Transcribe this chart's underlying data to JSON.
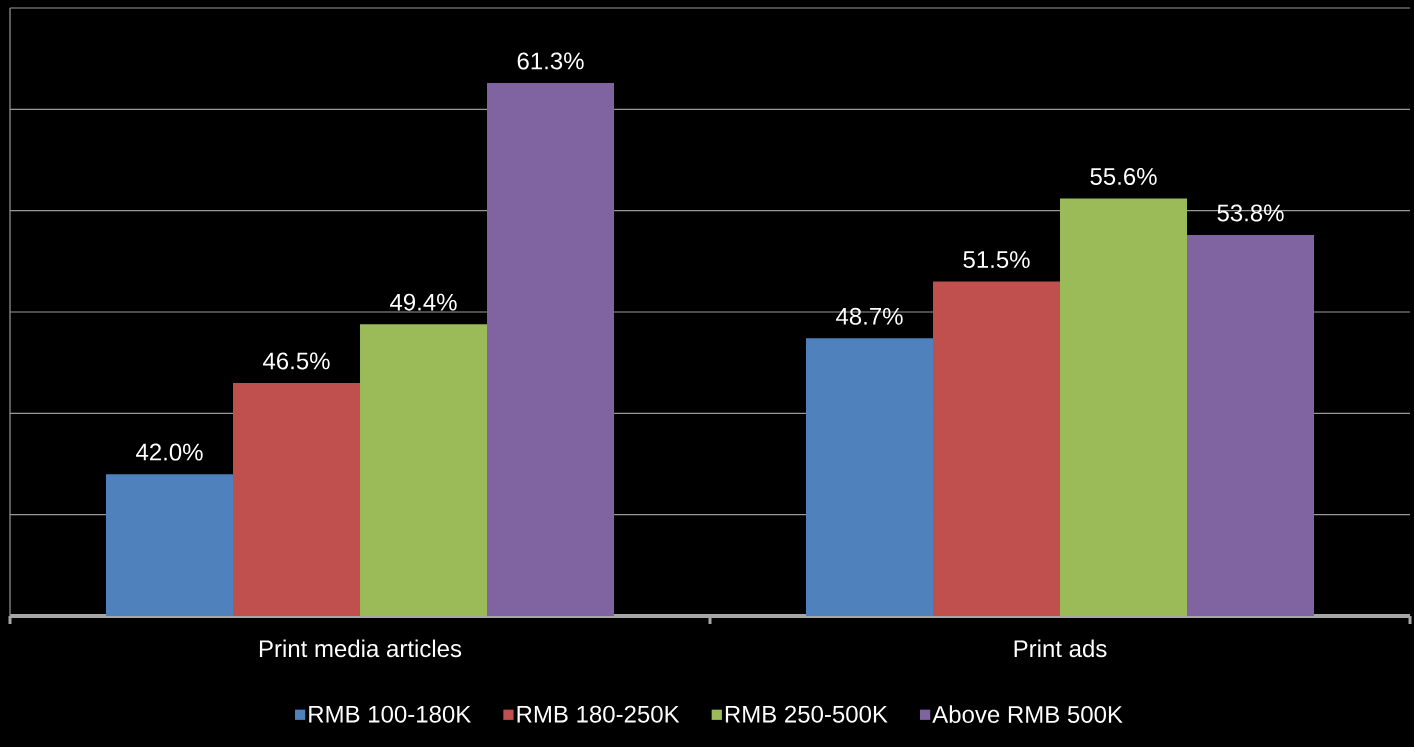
{
  "chart_data": {
    "type": "bar",
    "categories": [
      "Print media articles",
      "Print ads"
    ],
    "series": [
      {
        "name": "RMB 100-180K",
        "color": "#4f81bd",
        "values": [
          42.0,
          48.7
        ],
        "value_labels": [
          "42.0%",
          "48.7%"
        ]
      },
      {
        "name": "RMB 180-250K",
        "color": "#c0504d",
        "values": [
          46.5,
          51.5
        ],
        "value_labels": [
          "46.5%",
          "51.5%"
        ]
      },
      {
        "name": "RMB 250-500K",
        "color": "#9bbb59",
        "values": [
          49.4,
          55.6
        ],
        "value_labels": [
          "49.4%",
          "55.6%"
        ]
      },
      {
        "name": "Above RMB 500K",
        "color": "#8064a2",
        "values": [
          61.3,
          53.8
        ],
        "value_labels": [
          "61.3%",
          "53.8%"
        ]
      }
    ],
    "ylim": [
      35,
      65
    ],
    "yticks": [
      {
        "value": 40,
        "label": null
      },
      {
        "value": 45,
        "label": null
      },
      {
        "value": 50,
        "label": null
      },
      {
        "value": 55,
        "label": null
      },
      {
        "value": 60,
        "label": null
      },
      {
        "value": 65,
        "label": null
      }
    ],
    "tick_labels": "x",
    "grid": "y",
    "legend": "bottom"
  }
}
